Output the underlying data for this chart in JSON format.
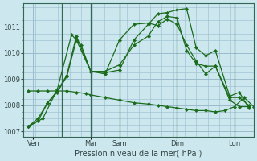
{
  "bg_color": "#cce8ee",
  "grid_color": "#99bbcc",
  "line_color": "#1a6b1a",
  "title": "Pression niveau de la mer( hPa )",
  "ylim": [
    1006.8,
    1011.9
  ],
  "yticks": [
    1007,
    1008,
    1009,
    1010,
    1011
  ],
  "xlim": [
    0,
    96
  ],
  "xtick_labels": [
    "Ven",
    "Mar",
    "Sam",
    "Dim",
    "Lun"
  ],
  "xtick_positions": [
    4,
    28,
    40,
    64,
    88
  ],
  "vlines": [
    16,
    28,
    40,
    64,
    88
  ],
  "series1": {
    "x": [
      2,
      6,
      10,
      14,
      18,
      22,
      28,
      34,
      40,
      46,
      52,
      56,
      60,
      64,
      68,
      72,
      76,
      80,
      86,
      90,
      94
    ],
    "y": [
      1007.2,
      1007.5,
      1008.1,
      1008.55,
      1009.15,
      1010.65,
      1009.3,
      1009.25,
      1009.35,
      1010.5,
      1011.1,
      1011.5,
      1011.55,
      1011.65,
      1011.7,
      1010.2,
      1009.9,
      1010.1,
      1008.35,
      1008.5,
      1007.9
    ]
  },
  "series2": {
    "x": [
      2,
      6,
      10,
      14,
      18,
      22,
      28,
      34,
      40,
      46,
      52,
      56,
      60,
      64,
      68,
      72,
      76,
      80,
      86,
      90,
      94
    ],
    "y": [
      1007.2,
      1007.4,
      1008.1,
      1008.5,
      1009.1,
      1010.5,
      1009.3,
      1009.2,
      1010.5,
      1011.1,
      1011.15,
      1011.05,
      1011.3,
      1011.1,
      1010.3,
      1009.7,
      1009.2,
      1009.5,
      1008.2,
      1007.95,
      1007.95
    ]
  },
  "series3": {
    "x": [
      2,
      6,
      10,
      14,
      18,
      22,
      26,
      28,
      34,
      40,
      46,
      52,
      56,
      60,
      64,
      68,
      72,
      76,
      80,
      84,
      88,
      92,
      96
    ],
    "y": [
      1008.55,
      1008.55,
      1008.55,
      1008.55,
      1008.55,
      1008.5,
      1008.45,
      1008.4,
      1008.3,
      1008.2,
      1008.1,
      1008.05,
      1008.0,
      1007.95,
      1007.9,
      1007.85,
      1007.8,
      1007.8,
      1007.75,
      1007.8,
      1007.95,
      1008.3,
      1007.95
    ]
  },
  "series4": {
    "x": [
      2,
      8,
      14,
      20,
      24,
      28,
      34,
      40,
      46,
      52,
      56,
      60,
      64,
      68,
      72,
      76,
      80,
      86,
      90,
      94
    ],
    "y": [
      1007.2,
      1007.5,
      1008.6,
      1010.7,
      1010.3,
      1009.3,
      1009.3,
      1009.55,
      1010.3,
      1010.65,
      1011.2,
      1011.4,
      1011.35,
      1010.1,
      1009.6,
      1009.5,
      1009.5,
      1008.3,
      1008.3,
      1008.0
    ]
  }
}
